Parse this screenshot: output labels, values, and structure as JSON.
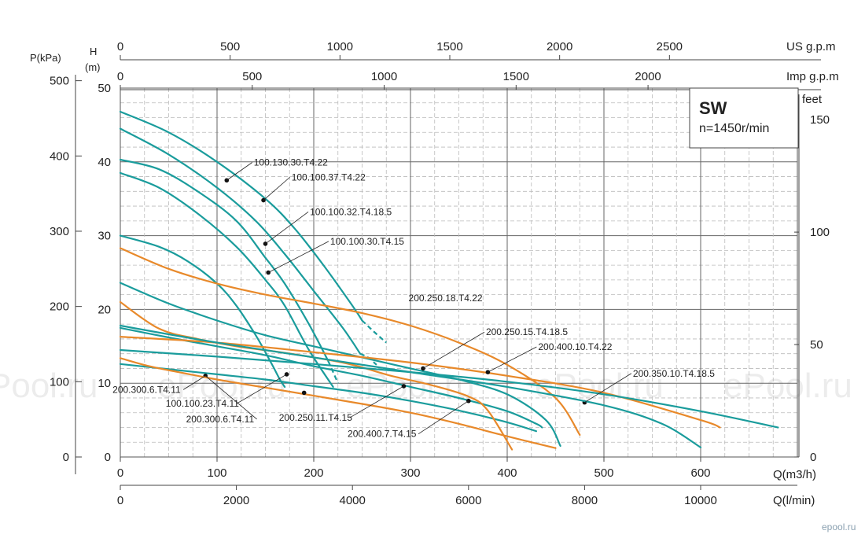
{
  "chart_data": {
    "type": "line",
    "title": "SW",
    "subtitle": "n=1450r/min",
    "axes": {
      "x_m3h": {
        "label": "Q(m3/h)",
        "ticks": [
          "0",
          "100",
          "200",
          "300",
          "400",
          "500",
          "600"
        ],
        "range": [
          0,
          700
        ]
      },
      "x_lmin": {
        "label": "Q(l/min)",
        "ticks": [
          "0",
          "2000",
          "4000",
          "6000",
          "8000",
          "10000"
        ]
      },
      "x_usgpm": {
        "label": "US g.p.m",
        "ticks": [
          "0",
          "500",
          "1000",
          "1500",
          "2000",
          "2500"
        ]
      },
      "x_impgpm": {
        "label": "Imp g.p.m",
        "ticks": [
          "0",
          "500",
          "1000",
          "1500",
          "2000"
        ]
      },
      "y_head": {
        "label": "H",
        "unit": "(m)",
        "ticks": [
          "0",
          "10",
          "20",
          "30",
          "40",
          "50"
        ],
        "range": [
          0,
          50
        ]
      },
      "y_kpa": {
        "label": "P(kPa)",
        "ticks": [
          "0",
          "100",
          "200",
          "300",
          "400",
          "500"
        ]
      },
      "y_feet": {
        "label": "feet",
        "ticks": [
          "0",
          "50",
          "100",
          "150"
        ]
      }
    },
    "grid": true,
    "series": [
      {
        "name": "100.130.30.T4.22",
        "color": "#1a9c9c",
        "x": [
          0,
          50,
          100,
          150,
          180,
          210,
          240,
          250
        ],
        "y": [
          46.8,
          44,
          40,
          35,
          31,
          26,
          20.5,
          18.5
        ],
        "ext_x": [
          250,
          262,
          275
        ],
        "ext_y": [
          18.5,
          17,
          15.5
        ],
        "dot": [
          110,
          37.5
        ]
      },
      {
        "name": "100.100.37.T4.22",
        "color": "#1a9c9c",
        "x": [
          0,
          50,
          100,
          140,
          170,
          200,
          230,
          248
        ],
        "y": [
          44.5,
          41,
          36.5,
          32,
          27.5,
          22.5,
          17.5,
          14
        ],
        "ext_x": [
          248,
          256,
          265
        ],
        "ext_y": [
          14,
          13.5,
          12.5
        ],
        "dot": [
          148,
          34.8
        ]
      },
      {
        "name": "100.100.32.T4.18.5",
        "color": "#1a9c9c",
        "x": [
          0,
          40,
          80,
          120,
          150,
          170,
          195,
          215
        ],
        "y": [
          40.3,
          39,
          36,
          32,
          27,
          23.5,
          18,
          13
        ],
        "ext_x": [
          215,
          220,
          225
        ],
        "ext_y": [
          13,
          11.5,
          10
        ],
        "dot": [
          150,
          28.9
        ]
      },
      {
        "name": "100.100.30.T4.15",
        "color": "#1a9c9c",
        "x": [
          0,
          40,
          80,
          120,
          150,
          170,
          195,
          220
        ],
        "y": [
          38.5,
          36.5,
          33,
          28.5,
          24,
          20.5,
          14.5,
          9.5
        ],
        "dot": [
          153,
          25
        ]
      },
      {
        "name": "100.100.23.T4.11",
        "color": "#1a9c9c",
        "x": [
          0,
          40,
          70,
          100,
          120,
          140,
          155,
          165,
          170
        ],
        "y": [
          30,
          28.5,
          26.5,
          23.5,
          20.5,
          16.5,
          13,
          10.5,
          9.5
        ],
        "dot": [
          172,
          11.2
        ]
      },
      {
        "name": "200.300.6.T4.11",
        "color": "#1a9c9c",
        "x": [
          0,
          50,
          100,
          150,
          200,
          250,
          300,
          350,
          400,
          430
        ],
        "y": [
          12.6,
          11.9,
          11.2,
          10.5,
          9.6,
          8.7,
          7.6,
          6.3,
          4.7,
          3.5
        ],
        "dot": [
          88,
          11
        ]
      },
      {
        "name": "200.300.6.T4.11",
        "color": "#e8892a",
        "x": [
          0,
          30,
          60,
          100,
          150,
          200,
          250,
          300,
          350,
          400,
          450
        ],
        "y": [
          13.4,
          12.3,
          11.5,
          10.5,
          9.4,
          8.3,
          7.2,
          6,
          4.5,
          2.8,
          1.2
        ],
        "dot": [
          190,
          8.7
        ]
      },
      {
        "name": "200.250.11.T4.15",
        "color": "#1a9c9c",
        "x": [
          0,
          50,
          100,
          150,
          200,
          250,
          300,
          350,
          400,
          430,
          436
        ],
        "y": [
          17.5,
          16.2,
          15,
          13.8,
          12.3,
          11,
          9.5,
          8,
          6.2,
          4.5,
          4
        ],
        "dot": [
          293,
          9.6
        ]
      },
      {
        "name": "200.250.15.T4.18.5",
        "color": "#1a9c9c",
        "x": [
          0,
          50,
          100,
          150,
          200,
          250,
          300,
          350,
          400,
          440,
          455
        ],
        "y": [
          23.6,
          20.8,
          18.5,
          16.5,
          15,
          13.5,
          12,
          10.5,
          8.5,
          5,
          1.5
        ],
        "dot": [
          313,
          12
        ]
      },
      {
        "name": "200.250.18.T4.22",
        "color": "#e8892a",
        "x": [
          0,
          50,
          100,
          150,
          200,
          250,
          300,
          350,
          400,
          450,
          475
        ],
        "y": [
          28.3,
          25.5,
          23.5,
          22,
          20.8,
          19.5,
          17.8,
          15.5,
          12.5,
          8,
          3
        ],
        "dot": null
      },
      {
        "name": "200.400.7.T4.15",
        "color": "#e8892a",
        "x": [
          0,
          40,
          80,
          120,
          160,
          200,
          240,
          280,
          320,
          360,
          380,
          405
        ],
        "y": [
          21,
          17.4,
          16,
          15,
          14.3,
          13.5,
          12.5,
          11,
          9.8,
          8.2,
          6.3,
          1
        ],
        "dot": [
          360,
          7.6
        ]
      },
      {
        "name": "200.400.10.T4.22",
        "color": "#e8892a",
        "x": [
          0,
          100,
          200,
          300,
          400,
          500,
          600,
          620
        ],
        "y": [
          16.3,
          15.5,
          14.2,
          12.8,
          11,
          8.7,
          5,
          4
        ],
        "dot": [
          380,
          11.5
        ]
      },
      {
        "name": "200.350.10.T4.18.5",
        "color": "#1a9c9c",
        "x": [
          0,
          100,
          200,
          300,
          400,
          500,
          600,
          680
        ],
        "y": [
          14.5,
          13.6,
          12.6,
          11.5,
          10.2,
          8.5,
          6.2,
          4
        ],
        "dot": [
          480,
          7.4
        ]
      },
      {
        "name": "",
        "color": "#1a9c9c",
        "x": [
          0,
          100,
          200,
          300,
          400,
          500,
          560,
          600
        ],
        "y": [
          17.8,
          15.5,
          13.5,
          11.5,
          9.5,
          7,
          4.5,
          1.3
        ],
        "dot": null
      }
    ],
    "labels": [
      {
        "text": "100.130.30.T4.22",
        "x": 138,
        "y": 39.5
      },
      {
        "text": "100.100.37.T4.22",
        "x": 177,
        "y": 37.5
      },
      {
        "text": "100.100.32.T4.18.5",
        "x": 196,
        "y": 32.8
      },
      {
        "text": "100.100.30.T4.15",
        "x": 217,
        "y": 28.8
      },
      {
        "text": "200.250.18.T4.22",
        "x": 298,
        "y": 21.1
      },
      {
        "text": "200.250.15.T4.18.5",
        "x": 378,
        "y": 16.5
      },
      {
        "text": "200.400.10.T4.22",
        "x": 432,
        "y": 14.5
      },
      {
        "text": "200.350.10.T4.18.5",
        "x": 530,
        "y": 10.9
      },
      {
        "text": "200.300.6.T4.11",
        "x": -8,
        "y": 8.7
      },
      {
        "text": "100.100.23.T4.11",
        "x": 47,
        "y": 6.8
      },
      {
        "text": "200.300.6.T4.11",
        "x": 68,
        "y": 4.7
      },
      {
        "text": "200.250.11.T4.15",
        "x": 164,
        "y": 4.9
      },
      {
        "text": "200.400.7.T4.15",
        "x": 235,
        "y": 2.7
      }
    ]
  },
  "watermarks": [
    "Pool.ru",
    "ePool.ru",
    "ePool.ru",
    "ePool.ru",
    "ePool.ru"
  ],
  "logo": "epool.ru"
}
